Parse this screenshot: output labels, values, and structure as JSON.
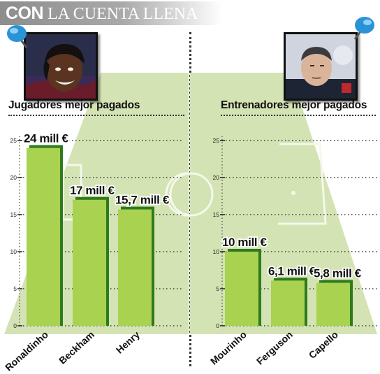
{
  "header": {
    "bold": "CON",
    "rest": "LA CUENTA LLENA"
  },
  "colors": {
    "bar_fill": "#a8d24f",
    "bar_edge": "#2f7a1e",
    "field": "#d4e3b3",
    "banner": "#9a9a9a"
  },
  "chart_data": [
    {
      "type": "bar",
      "title": "Jugadores mejor pagados",
      "categories": [
        "Ronaldinho",
        "Beckham",
        "Henry"
      ],
      "values": [
        24,
        17,
        15.7
      ],
      "data_labels": [
        "24 mill €",
        "17 mill €",
        "15,7 mill €"
      ],
      "yticks": [
        "0",
        "5",
        "10",
        "15",
        "20",
        "25"
      ],
      "ylim": [
        0,
        25
      ],
      "grid": true
    },
    {
      "type": "bar",
      "title": "Entrenadores mejor pagados",
      "categories": [
        "Mourinho",
        "Ferguson",
        "Capello"
      ],
      "values": [
        10,
        6.1,
        5.8
      ],
      "data_labels": [
        "10 mill €",
        "6,1 mill €",
        "5,8 mill €"
      ],
      "yticks": [
        "0",
        "5",
        "10",
        "15",
        "20",
        "25"
      ],
      "ylim": [
        0,
        25
      ],
      "grid": true
    }
  ],
  "photos": [
    {
      "icon": "player-photo",
      "pin": "pushpin-icon"
    },
    {
      "icon": "coach-photo",
      "pin": "pushpin-icon"
    }
  ]
}
